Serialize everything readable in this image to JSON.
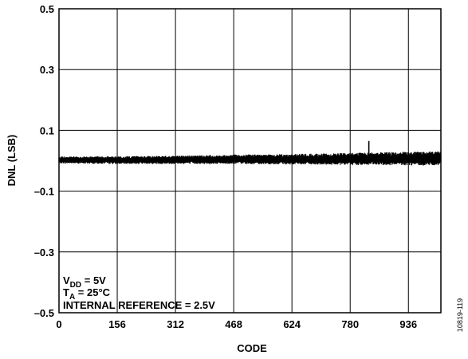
{
  "chart_data": {
    "type": "line",
    "xlabel": "CODE",
    "ylabel": "DNL (LSB)",
    "xlim": [
      0,
      1023
    ],
    "ylim": [
      -0.5,
      0.5
    ],
    "xticks": [
      0,
      156,
      312,
      468,
      624,
      780,
      936
    ],
    "xtick_labels": [
      "0",
      "156",
      "312",
      "468",
      "624",
      "780",
      "936"
    ],
    "yticks": [
      0.5,
      0.3,
      0.1,
      -0.1,
      -0.3,
      -0.5
    ],
    "ytick_labels": [
      "0.5",
      "0.3",
      "0.1",
      "–0.1",
      "–0.3",
      "–0.5"
    ],
    "grid": true,
    "series": [
      {
        "values_description_points": [
          {
            "x": 0,
            "ymin": -0.01,
            "ymax": 0.015
          },
          {
            "x": 156,
            "ymin": -0.012,
            "ymax": 0.016
          },
          {
            "x": 312,
            "ymin": -0.012,
            "ymax": 0.018
          },
          {
            "x": 468,
            "ymin": -0.012,
            "ymax": 0.022
          },
          {
            "x": 624,
            "ymin": -0.014,
            "ymax": 0.024
          },
          {
            "x": 780,
            "ymin": -0.016,
            "ymax": 0.028
          },
          {
            "x": 936,
            "ymin": -0.018,
            "ymax": 0.032
          },
          {
            "x": 1023,
            "ymin": -0.018,
            "ymax": 0.034
          }
        ],
        "spike": {
          "x": 830,
          "y": 0.065
        },
        "color": "#000000"
      }
    ],
    "annotations": {
      "vdd": {
        "main": "V",
        "sub": "DD",
        "rest": " = 5V"
      },
      "ta": {
        "main": "T",
        "sub": "A",
        "rest": " = 25°C"
      },
      "ref": "INTERNAL REFERENCE = 2.5V"
    },
    "figure_id": "10819-119"
  }
}
